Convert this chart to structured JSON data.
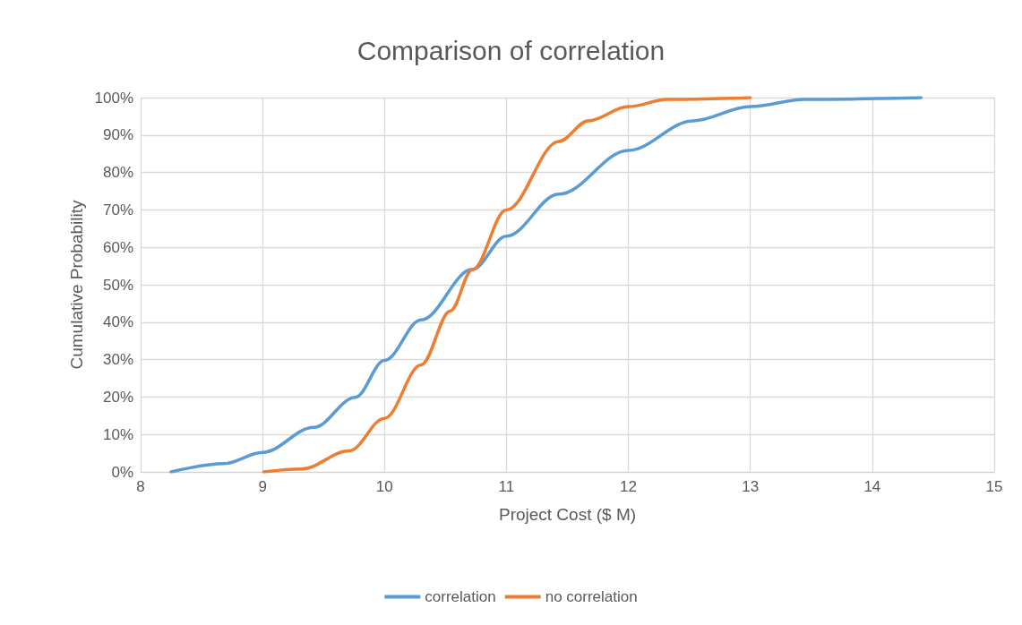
{
  "chart_data": {
    "type": "line",
    "title": "Comparison of correlation",
    "xlabel": "Project Cost ($ M)",
    "ylabel": "Cumulative Probability",
    "series": [
      {
        "name": "correlation",
        "color": "#5b9bd5",
        "x": [
          8.25,
          8.68,
          9,
          9.42,
          9.76,
          10,
          10.3,
          10.72,
          11,
          11.43,
          12,
          12.53,
          13,
          13.45,
          14.4
        ],
        "values": [
          0,
          2.2,
          5.2,
          11.9,
          19.9,
          29.8,
          40.6,
          54.1,
          63,
          74.2,
          85.9,
          93.8,
          97.6,
          99.5,
          100
        ]
      },
      {
        "name": "no correlation",
        "color": "#ed7d31",
        "x": [
          9.01,
          9.32,
          9.71,
          10,
          10.3,
          10.54,
          10.72,
          11,
          11.43,
          11.67,
          12,
          12.32,
          13
        ],
        "values": [
          0,
          0.8,
          5.6,
          14.3,
          28.6,
          43,
          54,
          70,
          88.3,
          93.8,
          97.6,
          99.5,
          100
        ]
      }
    ],
    "xlim": [
      8,
      15
    ],
    "xticks": [
      8,
      9,
      10,
      11,
      12,
      13,
      14,
      15
    ],
    "ylim": [
      0,
      100
    ],
    "yticks": [
      {
        "value": 0,
        "label": "0%"
      },
      {
        "value": 10,
        "label": "10%"
      },
      {
        "value": 20,
        "label": "20%"
      },
      {
        "value": 30,
        "label": "30%"
      },
      {
        "value": 40,
        "label": "40%"
      },
      {
        "value": 50,
        "label": "50%"
      },
      {
        "value": 60,
        "label": "60%"
      },
      {
        "value": 70,
        "label": "70%"
      },
      {
        "value": 80,
        "label": "80%"
      },
      {
        "value": 90,
        "label": "90%"
      },
      {
        "value": 100,
        "label": "100%"
      }
    ],
    "grid": true,
    "legend": "bottom",
    "marker": "none",
    "line_style": "solid"
  }
}
